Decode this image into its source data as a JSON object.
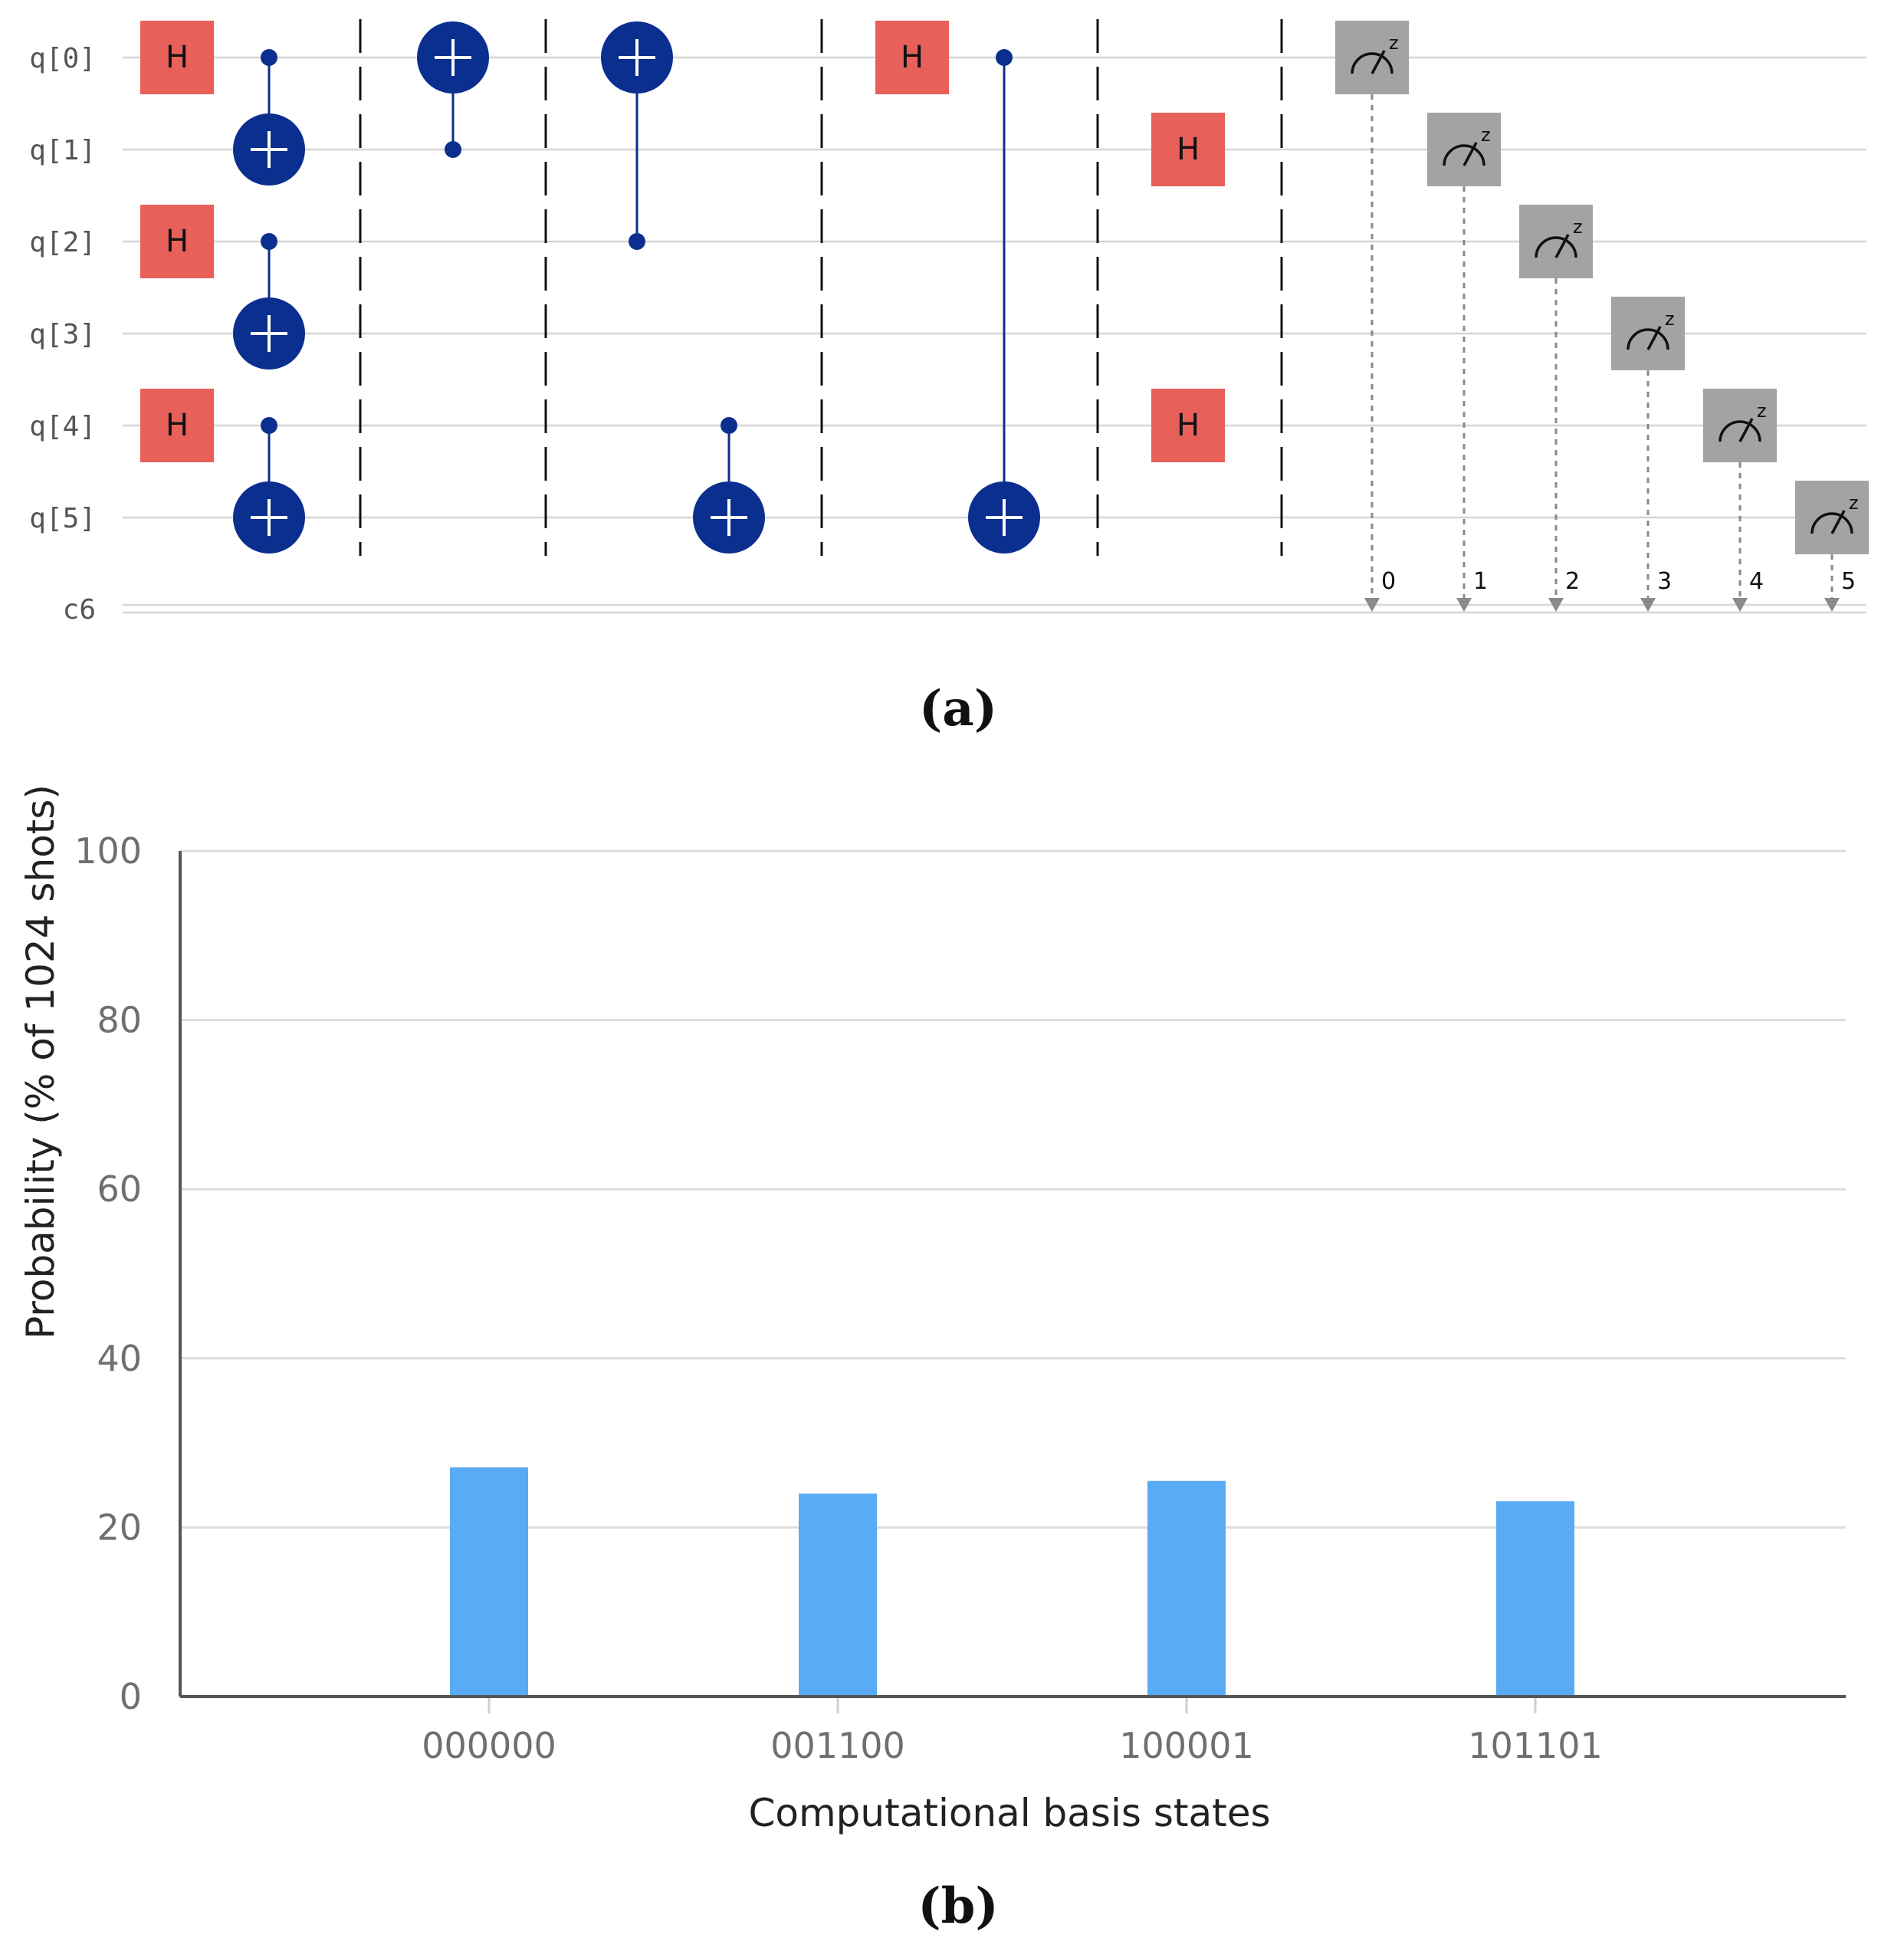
{
  "panel_a": {
    "caption": "(a)",
    "qubits": [
      "q[0]",
      "q[1]",
      "q[2]",
      "q[3]",
      "q[4]",
      "q[5]"
    ],
    "classical_register": "c6",
    "gate_label": "H",
    "measure_basis": "z",
    "measure_bits": [
      "0",
      "1",
      "2",
      "3",
      "4",
      "5"
    ],
    "colors": {
      "h_gate": "#e8605a",
      "cnot": "#0b2f8f",
      "measure": "#a3a3a3",
      "wire": "#d6d6d6"
    }
  },
  "panel_b": {
    "caption": "(b)"
  },
  "chart_data": {
    "type": "bar",
    "title": "",
    "xlabel": "Computational basis states",
    "ylabel": "Probability (% of 1024 shots)",
    "categories": [
      "000000",
      "001100",
      "100001",
      "101101"
    ],
    "values": [
      27.1,
      24.0,
      25.5,
      23.1
    ],
    "ylim": [
      0,
      100
    ],
    "yticks": [
      "0",
      "20",
      "40",
      "60",
      "80",
      "100"
    ],
    "grid": true,
    "bar_color": "#5aabf5"
  }
}
